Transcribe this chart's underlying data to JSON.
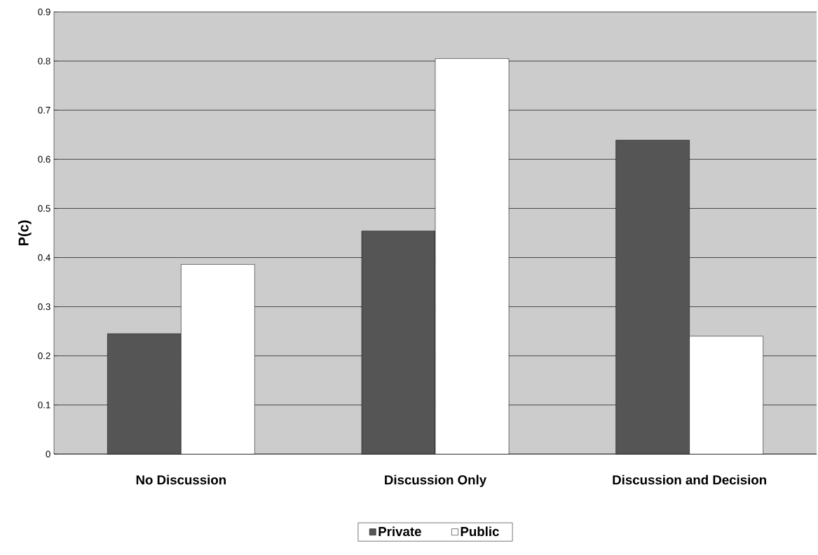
{
  "chart_data": {
    "type": "bar",
    "ylabel": "P(c)",
    "categories": [
      "No Discussion",
      "Discussion Only",
      "Discussion and Decision"
    ],
    "series": [
      {
        "name": "Private",
        "color": "#555555",
        "values": [
          0.245,
          0.454,
          0.639
        ]
      },
      {
        "name": "Public",
        "color": "#ffffff",
        "values": [
          0.386,
          0.805,
          0.24
        ]
      }
    ],
    "ylim": [
      0,
      0.9
    ],
    "yticks": [
      0,
      0.1,
      0.2,
      0.3,
      0.4,
      0.5,
      0.6,
      0.7,
      0.8,
      0.9
    ],
    "grid": "y",
    "legend": "bottom"
  }
}
